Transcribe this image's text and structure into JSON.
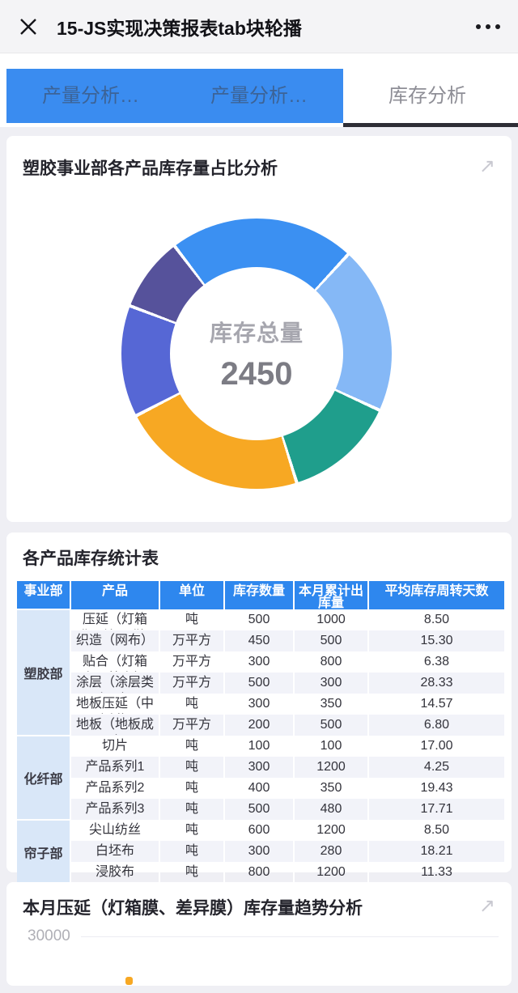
{
  "app": {
    "title": "15-JS实现决策报表tab块轮播"
  },
  "icons": [
    "close-icon",
    "more-icon",
    "expand-icon"
  ],
  "tabs": [
    {
      "label": "产量分析…",
      "active": false
    },
    {
      "label": "产量分析…",
      "active": false
    },
    {
      "label": "库存分析",
      "active": true
    }
  ],
  "pie_card": {
    "title": "塑胶事业部各产品库存量占比分析",
    "center_label": "库存总量",
    "center_value": "2450"
  },
  "table_card": {
    "title": "各产品库存统计表",
    "columns": [
      "事业部",
      "产品",
      "单位",
      "库存数量",
      "本月累计出库量",
      "平均库存周转天数"
    ],
    "groups": [
      {
        "division": "塑胶部",
        "rows": [
          [
            "压延（灯箱膜、差异膜）",
            "吨",
            "500",
            "1000",
            "8.50"
          ],
          [
            "织造（网布）",
            "万平方",
            "450",
            "500",
            "15.30"
          ],
          [
            "贴合（灯箱布、篷布）",
            "万平方",
            "300",
            "800",
            "6.38"
          ],
          [
            "涂层（涂层类产品）",
            "万平方",
            "500",
            "300",
            "28.33"
          ],
          [
            "地板压延（中底料）",
            "吨",
            "300",
            "350",
            "14.57"
          ],
          [
            "地板（地板成品）",
            "万平方",
            "200",
            "500",
            "6.80"
          ]
        ]
      },
      {
        "division": "化纤部",
        "rows": [
          [
            "切片",
            "吨",
            "100",
            "100",
            "17.00"
          ],
          [
            "产品系列1",
            "吨",
            "300",
            "1200",
            "4.25"
          ],
          [
            "产品系列2",
            "吨",
            "400",
            "350",
            "19.43"
          ],
          [
            "产品系列3",
            "吨",
            "500",
            "480",
            "17.71"
          ]
        ]
      },
      {
        "division": "帘子部",
        "rows": [
          [
            "尖山纺丝",
            "吨",
            "600",
            "1200",
            "8.50"
          ],
          [
            "白坯布",
            "吨",
            "300",
            "280",
            "18.21"
          ],
          [
            "浸胶布",
            "吨",
            "800",
            "1200",
            "11.33"
          ]
        ]
      }
    ]
  },
  "trend_card": {
    "title": "本月压延（灯箱膜、差异膜）库存量趋势分析",
    "y_tick": "30000"
  },
  "chart_data": [
    {
      "type": "pie",
      "title": "塑胶事业部各产品库存量占比分析",
      "center_label": "库存总量",
      "center_value_displayed": 2450,
      "inner_radius_ratio": 0.64,
      "start_angle_deg": -38,
      "legend_position": "none",
      "slices": [
        {
          "name": "压延（灯箱膜、差异膜）",
          "value": 500,
          "color": "#3B90F2"
        },
        {
          "name": "织造（网布）",
          "value": 450,
          "color": "#85B8F6"
        },
        {
          "name": "贴合（灯箱布、篷布）",
          "value": 300,
          "color": "#1F9E8C"
        },
        {
          "name": "涂层（涂层类产品）",
          "value": 500,
          "color": "#F7A823"
        },
        {
          "name": "地板压延（中底料）",
          "value": 300,
          "color": "#5667D5"
        },
        {
          "name": "地板（地板成品）",
          "value": 200,
          "color": "#56529B"
        }
      ]
    },
    {
      "type": "line",
      "title": "本月压延（灯箱膜、差异膜）库存量趋势分析",
      "visible_y_ticks": [
        30000
      ],
      "visible_note": "chart body cut off at bottom edge of screenshot; one orange marker visible"
    }
  ],
  "colors": {
    "accent_blue": "#3A8CF0",
    "table_header_blue": "#2E87EE",
    "division_cell_blue": "#D9E7F8",
    "zebra_row": "#F2F3F9",
    "active_tab_underline": "#2E2E36",
    "orange": "#F7A823",
    "page_background": "#EFEFF4"
  }
}
